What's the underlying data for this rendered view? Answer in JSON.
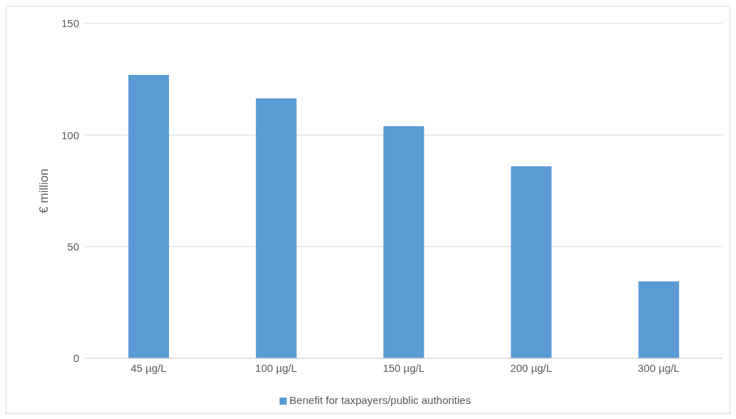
{
  "chart_data": {
    "type": "bar",
    "ylabel": "€ million",
    "categories": [
      "45 µg/L",
      "100 µg/L",
      "150 µg/L",
      "200 µg/L",
      "300 µg/L"
    ],
    "series": [
      {
        "name": "Benefit for taxpayers/public authorities",
        "color": "#5b9bd5",
        "values": [
          127,
          116.5,
          104,
          86,
          34.5
        ]
      }
    ],
    "ylim": [
      0,
      150
    ],
    "yticks": [
      0,
      50,
      100,
      150
    ],
    "grid": "y",
    "legend": "bottom"
  }
}
